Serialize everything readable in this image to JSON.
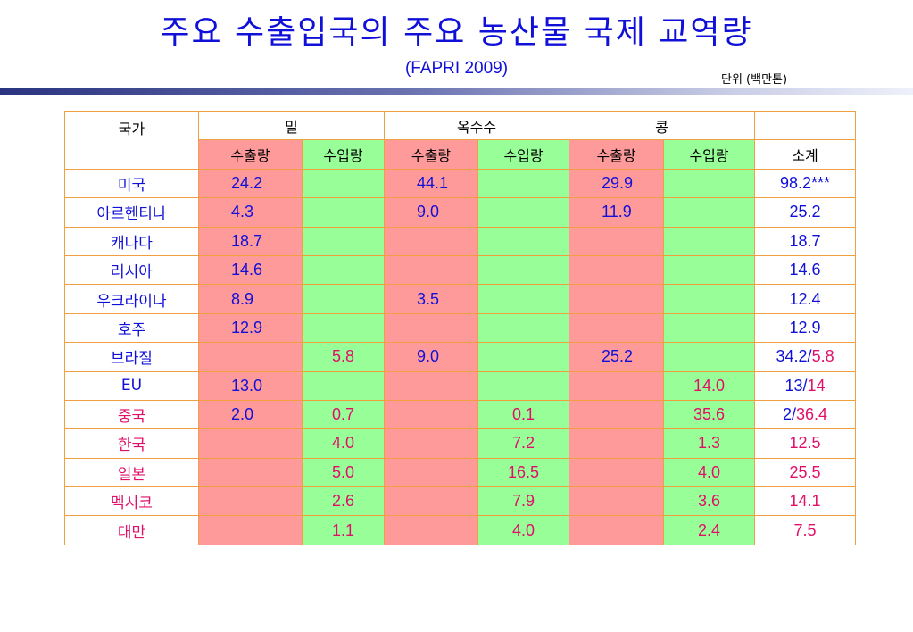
{
  "title": "주요 수출입국의 주요 농산물 국제 교역량",
  "subtitle": "(FAPRI 2009)",
  "unit": "단위 (백만톤)",
  "table": {
    "country_header": "국가",
    "groups": [
      "밀",
      "옥수수",
      "콩"
    ],
    "export_label": "수출량",
    "import_label": "수입량",
    "total_label": "소계",
    "rows": [
      {
        "country": "미국",
        "importer": false,
        "cells": [
          "24.2",
          "",
          "44.1",
          "",
          "29.9",
          ""
        ],
        "total_a": "98.2***",
        "total_b": ""
      },
      {
        "country": "아르헨티나",
        "importer": false,
        "cells": [
          "4.3",
          "",
          "9.0",
          "",
          "11.9",
          ""
        ],
        "total_a": "25.2",
        "total_b": ""
      },
      {
        "country": "캐나다",
        "importer": false,
        "cells": [
          "18.7",
          "",
          "",
          "",
          "",
          ""
        ],
        "total_a": "18.7",
        "total_b": ""
      },
      {
        "country": "러시아",
        "importer": false,
        "cells": [
          "14.6",
          "",
          "",
          "",
          "",
          ""
        ],
        "total_a": "14.6",
        "total_b": ""
      },
      {
        "country": "우크라이나",
        "importer": false,
        "cells": [
          "8.9",
          "",
          "3.5",
          "",
          "",
          ""
        ],
        "total_a": "12.4",
        "total_b": ""
      },
      {
        "country": "호주",
        "importer": false,
        "cells": [
          "12.9",
          "",
          "",
          "",
          "",
          ""
        ],
        "total_a": "12.9",
        "total_b": ""
      },
      {
        "country": "브라질",
        "importer": false,
        "cells": [
          "",
          "5.8",
          "9.0",
          "",
          "25.2",
          ""
        ],
        "total_a": "34.2",
        "total_b": "5.8"
      },
      {
        "country": "EU",
        "importer": false,
        "cells": [
          "13.0",
          "",
          "",
          "",
          "",
          "14.0"
        ],
        "total_a": "13",
        "total_b": "14"
      },
      {
        "country": "중국",
        "importer": true,
        "cells": [
          "2.0",
          "0.7",
          "",
          "0.1",
          "",
          "35.6"
        ],
        "total_a": "2",
        "total_b": "36.4"
      },
      {
        "country": "한국",
        "importer": true,
        "cells": [
          "",
          "4.0",
          "",
          "7.2",
          "",
          "1.3"
        ],
        "total_a": "",
        "total_b": "12.5"
      },
      {
        "country": "일본",
        "importer": true,
        "cells": [
          "",
          "5.0",
          "",
          "16.5",
          "",
          "4.0"
        ],
        "total_a": "",
        "total_b": "25.5"
      },
      {
        "country": "멕시코",
        "importer": true,
        "cells": [
          "",
          "2.6",
          "",
          "7.9",
          "",
          "3.6"
        ],
        "total_a": "",
        "total_b": "14.1"
      },
      {
        "country": "대만",
        "importer": true,
        "cells": [
          "",
          "1.1",
          "",
          "4.0",
          "",
          "2.4"
        ],
        "total_a": "",
        "total_b": "7.5"
      }
    ]
  },
  "colors": {
    "title": "#1010d8",
    "export_cell": "#ff9a9a",
    "import_cell": "#98fe98",
    "import_text": "#e0106a",
    "border": "#f0a040"
  }
}
